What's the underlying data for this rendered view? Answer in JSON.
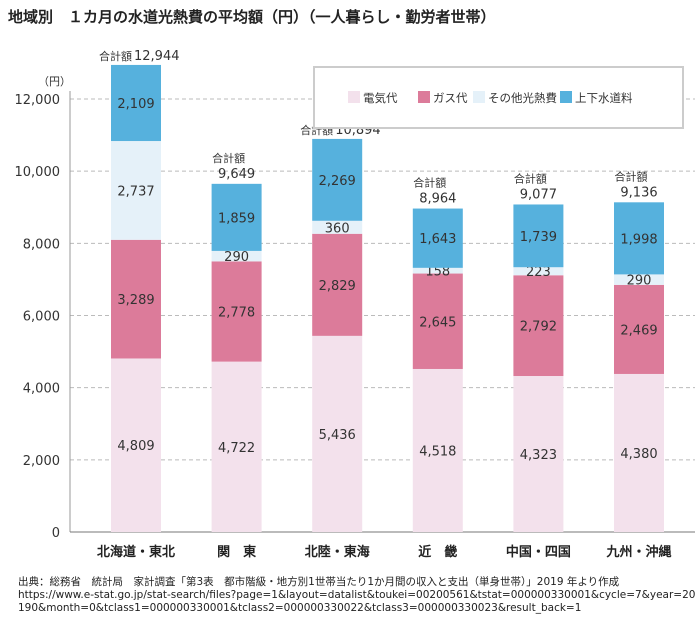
{
  "title": "地域別　１カ月の水道光熱費の平均額（円）（一人暮らし・勤労者世帯）",
  "footer": {
    "source": "出典：総務省　統計局　家計調査「第3表　都市階級・地方別1世帯当たり1か月間の収入と支出（単身世帯）」2019 年より作成",
    "url": "https://www.e-stat.go.jp/stat-search/files?page=1&layout=datalist&toukei=00200561&tstat=000000330001&cycle=7&year=20190&month=0&tclass1=000000330001&tclass2=000000330022&tclass3=000000330023&result_back=1"
  },
  "chart_data": {
    "type": "bar",
    "stacked": true,
    "ylabel": "（円）",
    "ylim": [
      0,
      12000
    ],
    "yticks": [
      0,
      2000,
      4000,
      6000,
      8000,
      10000,
      12000
    ],
    "ytick_labels": [
      "0",
      "2,000",
      "4,000",
      "6,000",
      "8,000",
      "10,000",
      "12,000"
    ],
    "grid": true,
    "legend_placement": "top-right",
    "categories": [
      "北海道・東北",
      "関　東",
      "北陸・東海",
      "近　畿",
      "中国・四国",
      "九州・沖縄"
    ],
    "series": [
      {
        "name": "電気代",
        "color": "#f3e1ec",
        "values": [
          4809,
          4722,
          5436,
          4518,
          4323,
          4380
        ]
      },
      {
        "name": "ガス代",
        "color": "#dc7b9a",
        "values": [
          3289,
          2778,
          2829,
          2645,
          2792,
          2469
        ]
      },
      {
        "name": "その他光熱費",
        "color": "#e5f1f9",
        "values": [
          2737,
          290,
          360,
          158,
          223,
          290
        ]
      },
      {
        "name": "上下水道料",
        "color": "#56b1dd",
        "values": [
          2109,
          1859,
          2269,
          1643,
          1739,
          1998
        ]
      }
    ],
    "total_label": "合計額",
    "totals": [
      12944,
      9649,
      10894,
      8964,
      9077,
      9136
    ]
  }
}
